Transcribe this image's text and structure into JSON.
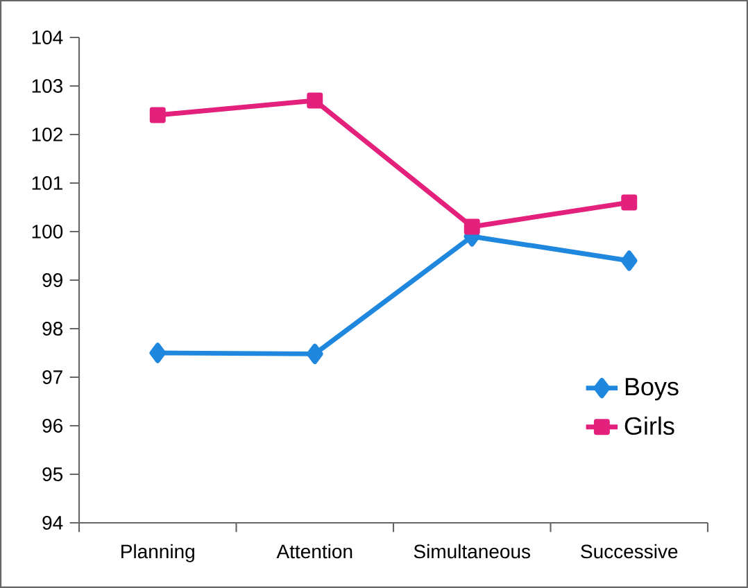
{
  "chart_data": {
    "type": "line",
    "categories": [
      "Planning",
      "Attention",
      "Simultaneous",
      "Successive"
    ],
    "series": [
      {
        "name": "Boys",
        "color": "#1f88de",
        "marker": "diamond",
        "values": [
          97.5,
          97.48,
          99.9,
          99.4
        ]
      },
      {
        "name": "Girls",
        "color": "#e3207c",
        "marker": "square",
        "values": [
          102.4,
          102.7,
          100.1,
          100.6
        ]
      }
    ],
    "ylim": [
      94,
      104
    ],
    "yticks": [
      94,
      95,
      96,
      97,
      98,
      99,
      100,
      101,
      102,
      103,
      104
    ],
    "grid": false,
    "legend": "bottom right"
  }
}
